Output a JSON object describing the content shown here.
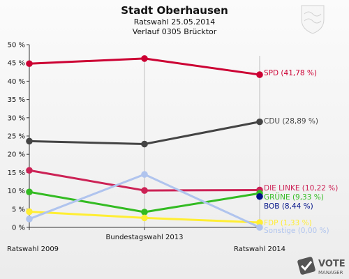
{
  "chart_data": {
    "type": "line",
    "title": "Stadt Oberhausen",
    "subtitle_1": "Ratswahl 25.05.2014",
    "subtitle_2": "Verlauf 0305 Brücktor",
    "categories": [
      "Ratswahl 2009",
      "Bundestagswahl 2013",
      "Ratswahl 2014"
    ],
    "ylim": [
      0,
      50
    ],
    "yticks": [
      "0 %",
      "5 %",
      "10 %",
      "15 %",
      "20 %",
      "25 %",
      "30 %",
      "35 %",
      "40 %",
      "45 %",
      "50 %"
    ],
    "grid": false,
    "series": [
      {
        "name": "SPD",
        "label": "SPD (41,78 %)",
        "color": "#cc0033",
        "values": [
          44.8,
          46.2,
          41.78
        ]
      },
      {
        "name": "CDU",
        "label": "CDU (28,89 %)",
        "color": "#444444",
        "values": [
          23.6,
          22.8,
          28.89
        ]
      },
      {
        "name": "DIE LINKE",
        "label": "DIE LINKE (10,22 %)",
        "color": "#cc2255",
        "values": [
          15.6,
          10.1,
          10.22
        ]
      },
      {
        "name": "GRÜNE",
        "label": "GRÜNE (9,33 %)",
        "color": "#33bb22",
        "values": [
          9.7,
          4.2,
          9.33
        ]
      },
      {
        "name": "BOB",
        "label": "BOB (8,44 %)",
        "color": "#001188",
        "values": [
          null,
          null,
          8.44
        ]
      },
      {
        "name": "FDP",
        "label": "FDP (1,33 %)",
        "color": "#ffee33",
        "values": [
          4.3,
          2.6,
          1.33
        ]
      },
      {
        "name": "Sonstige",
        "label": "Sonstige (0,00 %)",
        "color": "#b0c4ee",
        "values": [
          2.3,
          14.5,
          0.0
        ]
      }
    ]
  },
  "branding": {
    "logo_text": "VOTE",
    "logo_subtext": "MANAGER",
    "logo_icon": "check-badge-icon",
    "crest_icon": "city-crest-icon"
  }
}
